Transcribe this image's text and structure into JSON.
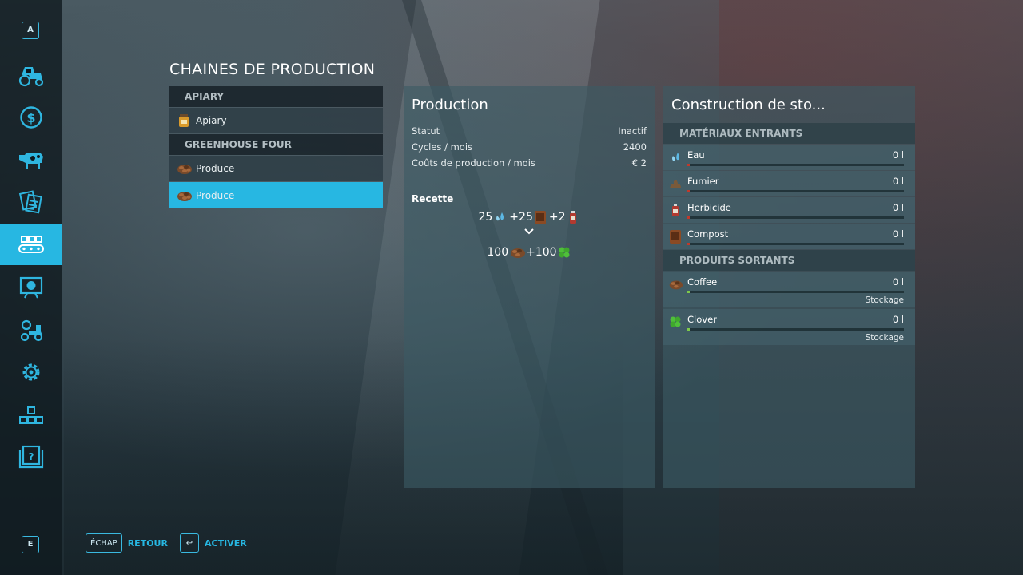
{
  "sidebar": {
    "top_key": "A",
    "bottom_key": "E",
    "items": [
      {
        "icon": "tractor-icon",
        "active": false
      },
      {
        "icon": "dollar-coin-icon",
        "active": false
      },
      {
        "icon": "cow-icon",
        "active": false
      },
      {
        "icon": "contracts-icon",
        "active": false
      },
      {
        "icon": "production-conveyor-icon",
        "active": true
      },
      {
        "icon": "presentation-board-icon",
        "active": false
      },
      {
        "icon": "vehicle-settings-icon",
        "active": false
      },
      {
        "icon": "gear-icon",
        "active": false
      },
      {
        "icon": "blocks-hierarchy-icon",
        "active": false
      },
      {
        "icon": "help-book-icon",
        "active": false
      }
    ],
    "accent_color": "#27b7e2"
  },
  "page": {
    "title": "CHAINES DE PRODUCTION"
  },
  "chains": {
    "groups": [
      {
        "label": "APIARY",
        "items": [
          {
            "label": "Apiary",
            "icon": "honey-jar-icon",
            "selected": false
          }
        ]
      },
      {
        "label": "GREENHOUSE FOUR",
        "items": [
          {
            "label": "Produce",
            "icon": "coffee-beans-icon",
            "selected": false
          },
          {
            "label": "Produce",
            "icon": "coffee-beans-icon",
            "selected": true
          }
        ]
      }
    ]
  },
  "production": {
    "title": "Production",
    "rows": [
      {
        "label": "Statut",
        "value": "Inactif"
      },
      {
        "label": "Cycles / mois",
        "value": "2400"
      },
      {
        "label": "Coûts de production / mois",
        "value": "€ 2"
      }
    ],
    "recipe_title": "Recette",
    "inputs": [
      {
        "amount": "25",
        "icon": "water-drop-icon"
      },
      {
        "amount": "25",
        "icon": "compost-bag-icon"
      },
      {
        "amount": "2",
        "icon": "herbicide-bottle-icon"
      }
    ],
    "outputs": [
      {
        "amount": "100",
        "icon": "coffee-beans-icon"
      },
      {
        "amount": "100",
        "icon": "clover-icon"
      }
    ],
    "plus": "+"
  },
  "storage": {
    "title": "Construction de sto...",
    "inputs_header": "MATÉRIAUX ENTRANTS",
    "outputs_header": "PRODUITS SORTANTS",
    "inputs": [
      {
        "name": "Eau",
        "amount": "0 l",
        "icon": "water-drop-icon",
        "level": 0
      },
      {
        "name": "Fumier",
        "amount": "0 l",
        "icon": "manure-icon",
        "level": 0
      },
      {
        "name": "Herbicide",
        "amount": "0 l",
        "icon": "herbicide-bottle-icon",
        "level": 0
      },
      {
        "name": "Compost",
        "amount": "0 l",
        "icon": "compost-bag-icon",
        "level": 0
      }
    ],
    "outputs": [
      {
        "name": "Coffee",
        "amount": "0 l",
        "icon": "coffee-beans-icon",
        "level": 0,
        "mode": "Stockage"
      },
      {
        "name": "Clover",
        "amount": "0 l",
        "icon": "clover-icon",
        "level": 0,
        "mode": "Stockage"
      }
    ],
    "input_marker_color": "#c0392b",
    "output_marker_color": "#7ec94a"
  },
  "footer": {
    "back_key": "ÉCHAP",
    "back_label": "RETOUR",
    "activate_key": "↩",
    "activate_label": "ACTIVER"
  }
}
